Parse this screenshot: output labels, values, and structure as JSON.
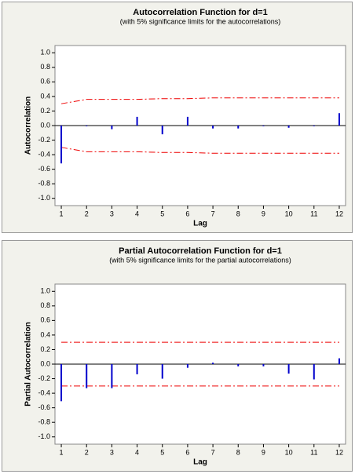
{
  "chart_data": [
    {
      "type": "stem",
      "title": "Autocorrelation Function for d=1",
      "subtitle": "(with 5% significance limits for the autocorrelations)",
      "x_label": "Lag",
      "y_label": "Autocorrelation",
      "x": [
        1,
        2,
        3,
        4,
        5,
        6,
        7,
        8,
        9,
        10,
        11,
        12
      ],
      "values": [
        -0.52,
        -0.01,
        -0.05,
        0.12,
        -0.12,
        0.12,
        -0.04,
        -0.04,
        -0.01,
        -0.03,
        -0.01,
        0.17
      ],
      "upper_limits": [
        0.3,
        0.36,
        0.36,
        0.36,
        0.37,
        0.37,
        0.38,
        0.38,
        0.38,
        0.38,
        0.38,
        0.38
      ],
      "lower_limits": [
        -0.3,
        -0.36,
        -0.36,
        -0.36,
        -0.37,
        -0.37,
        -0.38,
        -0.38,
        -0.38,
        -0.38,
        -0.38,
        -0.38
      ],
      "color": "#0000cc",
      "limit_color": "#ee0000",
      "xlim": [
        0.75,
        12.25
      ],
      "xticks": [
        1,
        2,
        3,
        4,
        5,
        6,
        7,
        8,
        9,
        10,
        11,
        12
      ],
      "ylim": [
        -1.1,
        1.1
      ],
      "yticks": [
        {
          "value": 1,
          "label": "1.0"
        },
        {
          "value": 0.8,
          "label": "0.8"
        },
        {
          "value": 0.6,
          "label": "0.6"
        },
        {
          "value": 0.4,
          "label": "0.4"
        },
        {
          "value": 0.2,
          "label": "0.2"
        },
        {
          "value": 0,
          "label": "0.0"
        },
        {
          "value": -0.2,
          "label": "-0.2"
        },
        {
          "value": -0.4,
          "label": "-0.4"
        },
        {
          "value": -0.6,
          "label": "-0.6"
        },
        {
          "value": -0.8,
          "label": "-0.8"
        },
        {
          "value": -1,
          "label": "-1.0"
        }
      ]
    },
    {
      "type": "stem",
      "title": "Partial Autocorrelation Function for d=1",
      "subtitle": "(with 5% significance limits for the partial autocorrelations)",
      "x_label": "Lag",
      "y_label": "Partial Autocorrelation",
      "x": [
        1,
        2,
        3,
        4,
        5,
        6,
        7,
        8,
        9,
        10,
        11,
        12
      ],
      "values": [
        -0.51,
        -0.33,
        -0.33,
        -0.14,
        -0.2,
        -0.05,
        0.02,
        -0.03,
        -0.03,
        -0.13,
        -0.21,
        0.08
      ],
      "upper_limits": [
        0.3,
        0.3,
        0.3,
        0.3,
        0.3,
        0.3,
        0.3,
        0.3,
        0.3,
        0.3,
        0.3,
        0.3
      ],
      "lower_limits": [
        -0.3,
        -0.3,
        -0.3,
        -0.3,
        -0.3,
        -0.3,
        -0.3,
        -0.3,
        -0.3,
        -0.3,
        -0.3,
        -0.3
      ],
      "color": "#0000cc",
      "limit_color": "#ee0000",
      "xlim": [
        0.75,
        12.25
      ],
      "xticks": [
        1,
        2,
        3,
        4,
        5,
        6,
        7,
        8,
        9,
        10,
        11,
        12
      ],
      "ylim": [
        -1.1,
        1.1
      ],
      "yticks": [
        {
          "value": 1,
          "label": "1.0"
        },
        {
          "value": 0.8,
          "label": "0.8"
        },
        {
          "value": 0.6,
          "label": "0.6"
        },
        {
          "value": 0.4,
          "label": "0.4"
        },
        {
          "value": 0.2,
          "label": "0.2"
        },
        {
          "value": 0,
          "label": "0.0"
        },
        {
          "value": -0.2,
          "label": "-0.2"
        },
        {
          "value": -0.4,
          "label": "-0.4"
        },
        {
          "value": -0.6,
          "label": "-0.6"
        },
        {
          "value": -0.8,
          "label": "-0.8"
        },
        {
          "value": -1,
          "label": "-1.0"
        }
      ]
    }
  ]
}
